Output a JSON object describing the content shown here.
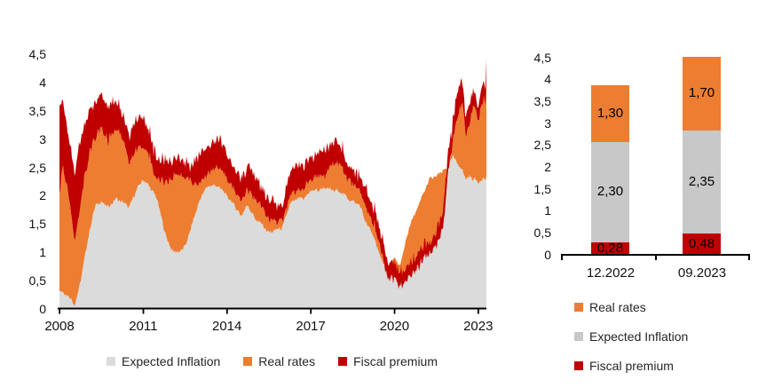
{
  "colors": {
    "real_rates": "#ED7D31",
    "expected_inflation_area": "#DBDBDB",
    "expected_inflation_bar": "#C8C8C8",
    "fiscal_premium": "#C00000",
    "axis": "#000000",
    "text": "#1A1A1A"
  },
  "chart_data": [
    {
      "type": "area",
      "title": "",
      "xlabel": "",
      "ylabel": "",
      "stacked": true,
      "grid": false,
      "legend_position": "bottom",
      "y_ticks": [
        "0",
        "0,5",
        "1",
        "1,5",
        "2",
        "2,5",
        "3",
        "3,5",
        "4",
        "4,5"
      ],
      "x_ticks": [
        "2008",
        "2011",
        "2014",
        "2017",
        "2020",
        "2023"
      ],
      "ylim": [
        0,
        4.5
      ],
      "x_range": [
        2008,
        2023.3
      ],
      "series_order": [
        "Expected Inflation",
        "Real rates",
        "Fiscal premium"
      ],
      "legend": [
        {
          "label": "Expected Inflation",
          "color_key": "expected_inflation_area"
        },
        {
          "label": "Real rates",
          "color_key": "real_rates"
        },
        {
          "label": "Fiscal premium",
          "color_key": "fiscal_premium"
        }
      ],
      "points_format": [
        "year",
        "expected_inflation",
        "real_rates",
        "fiscal_premium"
      ],
      "points": [
        [
          2008.0,
          0.35,
          1.7,
          1.55
        ],
        [
          2008.1,
          0.3,
          2.2,
          1.25
        ],
        [
          2008.3,
          0.25,
          1.85,
          1.0
        ],
        [
          2008.55,
          0.08,
          1.15,
          1.2
        ],
        [
          2008.7,
          0.35,
          1.35,
          1.2
        ],
        [
          2008.9,
          0.9,
          1.45,
          0.9
        ],
        [
          2009.1,
          1.45,
          1.35,
          0.75
        ],
        [
          2009.3,
          1.85,
          1.2,
          0.65
        ],
        [
          2009.5,
          1.9,
          1.3,
          0.6
        ],
        [
          2009.75,
          1.8,
          1.2,
          0.55
        ],
        [
          2010.0,
          1.95,
          1.25,
          0.55
        ],
        [
          2010.25,
          1.9,
          1.15,
          0.45
        ],
        [
          2010.5,
          1.8,
          0.8,
          0.45
        ],
        [
          2010.75,
          2.1,
          0.75,
          0.55
        ],
        [
          2011.0,
          2.3,
          0.6,
          0.55
        ],
        [
          2011.25,
          2.15,
          0.5,
          0.4
        ],
        [
          2011.5,
          1.95,
          0.35,
          0.4
        ],
        [
          2011.75,
          1.4,
          0.85,
          0.4
        ],
        [
          2012.0,
          1.05,
          1.25,
          0.3
        ],
        [
          2012.25,
          1.0,
          1.42,
          0.28
        ],
        [
          2012.5,
          1.1,
          1.25,
          0.25
        ],
        [
          2012.75,
          1.5,
          0.72,
          0.33
        ],
        [
          2013.0,
          1.9,
          0.28,
          0.52
        ],
        [
          2013.25,
          2.15,
          0.22,
          0.43
        ],
        [
          2013.5,
          2.2,
          0.27,
          0.48
        ],
        [
          2013.75,
          2.15,
          0.37,
          0.48
        ],
        [
          2014.0,
          2.0,
          0.32,
          0.45
        ],
        [
          2014.25,
          1.85,
          0.27,
          0.4
        ],
        [
          2014.5,
          1.65,
          0.27,
          0.38
        ],
        [
          2014.75,
          1.85,
          0.27,
          0.43
        ],
        [
          2015.0,
          1.6,
          0.35,
          0.35
        ],
        [
          2015.25,
          1.5,
          0.3,
          0.35
        ],
        [
          2015.5,
          1.35,
          0.22,
          0.38
        ],
        [
          2015.75,
          1.4,
          0.17,
          0.33
        ],
        [
          2016.0,
          1.45,
          0.1,
          0.28
        ],
        [
          2016.25,
          1.85,
          0.15,
          0.45
        ],
        [
          2016.5,
          1.95,
          0.15,
          0.45
        ],
        [
          2016.75,
          1.95,
          0.2,
          0.38
        ],
        [
          2017.0,
          2.1,
          0.2,
          0.35
        ],
        [
          2017.25,
          2.1,
          0.25,
          0.4
        ],
        [
          2017.5,
          2.15,
          0.25,
          0.45
        ],
        [
          2017.75,
          2.1,
          0.45,
          0.4
        ],
        [
          2018.0,
          2.1,
          0.5,
          0.4
        ],
        [
          2018.25,
          2.0,
          0.35,
          0.28
        ],
        [
          2018.5,
          1.9,
          0.3,
          0.25
        ],
        [
          2018.75,
          1.85,
          0.3,
          0.25
        ],
        [
          2019.0,
          1.5,
          0.25,
          0.35
        ],
        [
          2019.25,
          1.3,
          0.2,
          0.3
        ],
        [
          2019.5,
          0.9,
          0.2,
          0.3
        ],
        [
          2019.75,
          0.7,
          -0.15,
          0.3
        ],
        [
          2020.0,
          0.9,
          -0.3,
          0.25
        ],
        [
          2020.2,
          0.75,
          -0.4,
          0.3
        ],
        [
          2020.4,
          1.2,
          -0.7,
          0.25
        ],
        [
          2020.6,
          1.55,
          -0.95,
          0.25
        ],
        [
          2020.8,
          1.75,
          -1.05,
          0.25
        ],
        [
          2021.0,
          2.0,
          -1.15,
          0.25
        ],
        [
          2021.25,
          2.3,
          -1.3,
          0.2
        ],
        [
          2021.5,
          2.35,
          -1.25,
          0.25
        ],
        [
          2021.75,
          2.45,
          -1.0,
          0.3
        ],
        [
          2021.9,
          2.5,
          -0.15,
          0.3
        ],
        [
          2022.1,
          2.7,
          0.35,
          0.35
        ],
        [
          2022.3,
          2.55,
          0.95,
          0.45
        ],
        [
          2022.45,
          2.45,
          1.2,
          0.4
        ],
        [
          2022.55,
          2.3,
          0.75,
          0.3
        ],
        [
          2022.7,
          2.35,
          1.0,
          0.3
        ],
        [
          2022.85,
          2.3,
          1.3,
          0.28
        ],
        [
          2023.0,
          2.25,
          1.1,
          0.25
        ],
        [
          2023.1,
          2.3,
          1.25,
          0.3
        ],
        [
          2023.2,
          2.3,
          1.45,
          0.3
        ],
        [
          2023.26,
          2.3,
          1.3,
          0.3
        ],
        [
          2023.3,
          2.35,
          1.7,
          0.48
        ]
      ]
    },
    {
      "type": "bar",
      "title": "",
      "stacked": true,
      "grid": false,
      "legend_position": "bottom",
      "categories": [
        "12.2022",
        "09.2023"
      ],
      "y_ticks": [
        "0",
        "0,5",
        "1",
        "1,5",
        "2",
        "2,5",
        "3",
        "3,5",
        "4",
        "4,5"
      ],
      "ylim": [
        0,
        4.5
      ],
      "series": [
        {
          "name": "Fiscal premium",
          "color_key": "fiscal_premium",
          "values": [
            0.28,
            0.48
          ],
          "labels": [
            "0,28",
            "0,48"
          ]
        },
        {
          "name": "Expected Inflation",
          "color_key": "expected_inflation_bar",
          "values": [
            2.3,
            2.35
          ],
          "labels": [
            "2,30",
            "2,35"
          ]
        },
        {
          "name": "Real rates",
          "color_key": "real_rates",
          "values": [
            1.3,
            1.7
          ],
          "labels": [
            "1,30",
            "1,70"
          ]
        }
      ],
      "totals": [
        3.88,
        4.53
      ],
      "legend": [
        {
          "label": "Real rates",
          "color_key": "real_rates"
        },
        {
          "label": "Expected Inflation",
          "color_key": "expected_inflation_bar"
        },
        {
          "label": "Fiscal premium",
          "color_key": "fiscal_premium"
        }
      ]
    }
  ]
}
